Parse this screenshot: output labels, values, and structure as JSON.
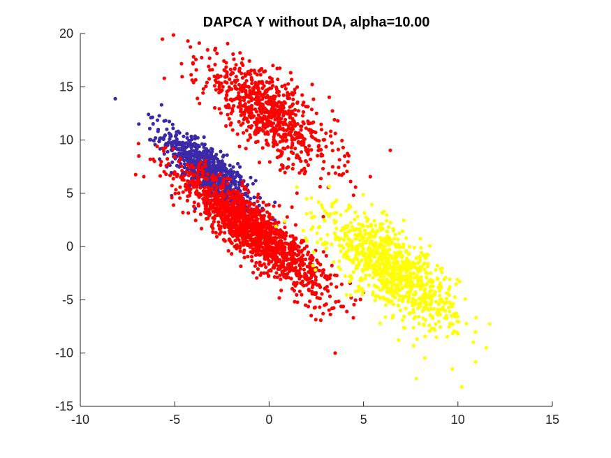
{
  "chart_data": {
    "type": "scatter",
    "title": "DAPCA Y without DA, alpha=10.00",
    "xlabel": "",
    "ylabel": "",
    "xlim": [
      -10,
      15
    ],
    "ylim": [
      -15,
      20
    ],
    "xticks": [
      -10,
      -5,
      0,
      5,
      10,
      15
    ],
    "yticks": [
      -15,
      -10,
      -5,
      0,
      5,
      10,
      15,
      20
    ],
    "grid": false,
    "legend": "none",
    "series": [
      {
        "color": "#3a2aa8",
        "clusters": [
          {
            "center": [
              -3.3,
              7.2
            ],
            "sd": [
              1.2,
              1.9
            ],
            "corr": -0.8,
            "count": 750
          }
        ],
        "outliers": [
          [
            -5.7,
            13.3
          ],
          [
            -6.9,
            11.5
          ],
          [
            -0.1,
            0.8
          ]
        ]
      },
      {
        "color": "#ff0000",
        "clusters": [
          {
            "center": [
              -1.6,
              2.7
            ],
            "sd": [
              1.7,
              2.5
            ],
            "corr": -0.85,
            "count": 850
          },
          {
            "center": [
              0.4,
              -0.3
            ],
            "sd": [
              1.6,
              2.5
            ],
            "corr": -0.8,
            "count": 600
          },
          {
            "center": [
              -0.1,
              12.6
            ],
            "sd": [
              1.8,
              2.8
            ],
            "corr": -0.75,
            "count": 750
          }
        ],
        "outliers": [
          [
            -6.9,
            8.5
          ],
          [
            -4.3,
            19.3
          ],
          [
            -3.7,
            19.1
          ],
          [
            3.5,
            -10.0
          ],
          [
            -4.0,
            15.4
          ]
        ]
      },
      {
        "color": "#ffff00",
        "clusters": [
          {
            "center": [
              6.5,
              -2.2
            ],
            "sd": [
              1.7,
              2.6
            ],
            "corr": -0.72,
            "count": 950
          }
        ],
        "outliers": [
          [
            10.2,
            -13.2
          ],
          [
            7.8,
            -12.4
          ],
          [
            11.5,
            -9.5
          ],
          [
            9.7,
            -11.5
          ],
          [
            2.4,
            2.8
          ]
        ]
      }
    ]
  }
}
